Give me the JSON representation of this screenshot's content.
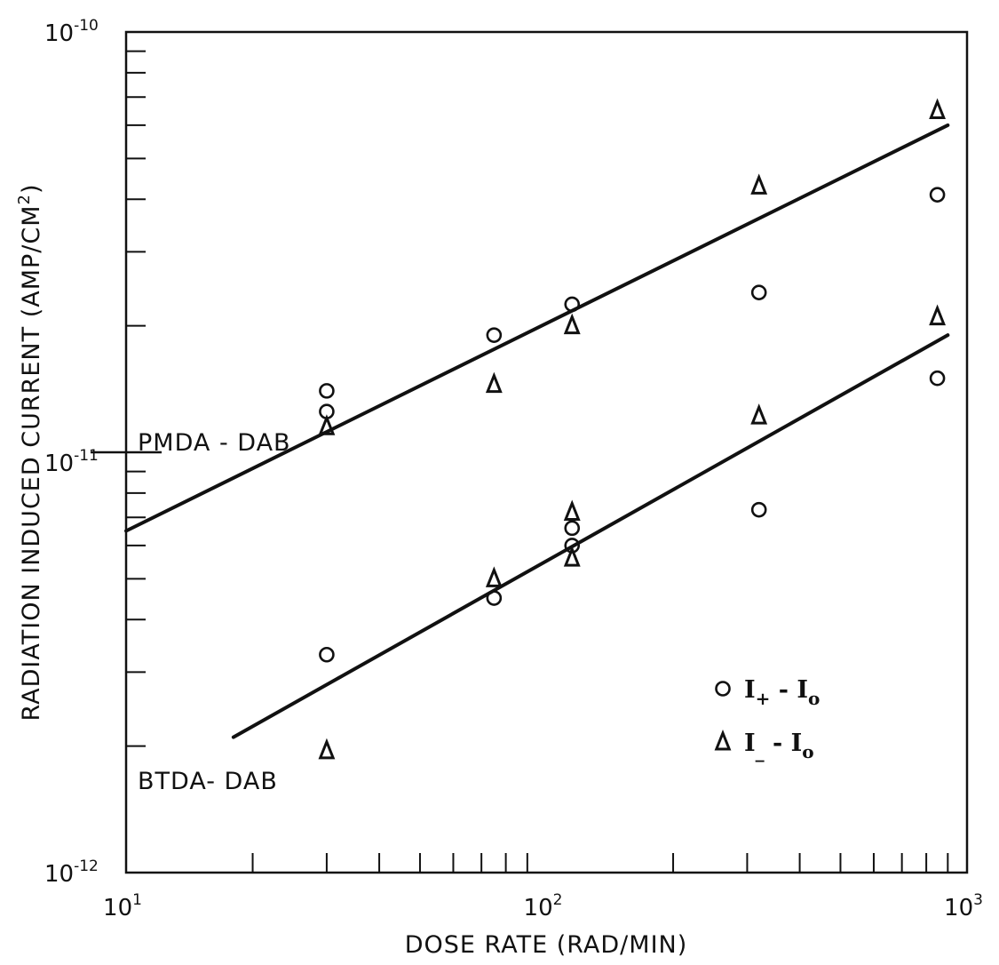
{
  "chart_data": {
    "type": "scatter",
    "title": "",
    "xlabel": "DOSE RATE (RAD/MIN)",
    "ylabel_main": "RADIATION INDUCED CURRENT (AMP/CM",
    "ylabel_sup": "2",
    "ylabel_close": ")",
    "x_scale": "log",
    "y_scale": "log",
    "xlim": [
      10,
      1000
    ],
    "ylim": [
      1e-12,
      1e-10
    ],
    "grid": false,
    "legend_position": "bottom-right",
    "x_ticks": [
      {
        "base": "10",
        "exp": "1"
      },
      {
        "base": "10",
        "exp": "2"
      },
      {
        "base": "10",
        "exp": "3"
      }
    ],
    "y_ticks": [
      {
        "base": "10",
        "exp": "-12"
      },
      {
        "base": "10",
        "exp": "-11"
      },
      {
        "base": "10",
        "exp": "-10"
      }
    ],
    "series": [
      {
        "symbol": "circle",
        "legend": {
          "main": "I",
          "sub": "+",
          "rest": " - I",
          "sub2": "o"
        },
        "points": [
          {
            "x": 30,
            "y": 1.4e-11
          },
          {
            "x": 30,
            "y": 1.25e-11
          },
          {
            "x": 75,
            "y": 1.9e-11
          },
          {
            "x": 115,
            "y": 2.25e-11
          },
          {
            "x": 320,
            "y": 2.4e-11
          },
          {
            "x": 850,
            "y": 4.1e-11
          },
          {
            "x": 30,
            "y": 3.3e-12
          },
          {
            "x": 75,
            "y": 4.5e-12
          },
          {
            "x": 115,
            "y": 6.6e-12
          },
          {
            "x": 115,
            "y": 6e-12
          },
          {
            "x": 320,
            "y": 7.3e-12
          },
          {
            "x": 850,
            "y": 1.5e-11
          }
        ]
      },
      {
        "symbol": "triangle",
        "legend": {
          "main": "I",
          "sub": "_",
          "rest": " - I",
          "sub2": "o"
        },
        "points": [
          {
            "x": 30,
            "y": 1.15e-11
          },
          {
            "x": 75,
            "y": 1.45e-11
          },
          {
            "x": 115,
            "y": 2e-11
          },
          {
            "x": 320,
            "y": 4.3e-11
          },
          {
            "x": 850,
            "y": 6.5e-11
          },
          {
            "x": 30,
            "y": 1.95e-12
          },
          {
            "x": 75,
            "y": 5e-12
          },
          {
            "x": 115,
            "y": 7.2e-12
          },
          {
            "x": 115,
            "y": 5.6e-12
          },
          {
            "x": 320,
            "y": 1.22e-11
          },
          {
            "x": 850,
            "y": 2.1e-11
          }
        ]
      }
    ],
    "fit_lines": [
      {
        "label": "PMDA - DAB",
        "x": [
          10,
          900
        ],
        "y": [
          6.5e-12,
          6e-11
        ]
      },
      {
        "label": "BTDA- DAB",
        "x": [
          18,
          900
        ],
        "y": [
          2.1e-12,
          1.9e-11
        ]
      }
    ]
  }
}
